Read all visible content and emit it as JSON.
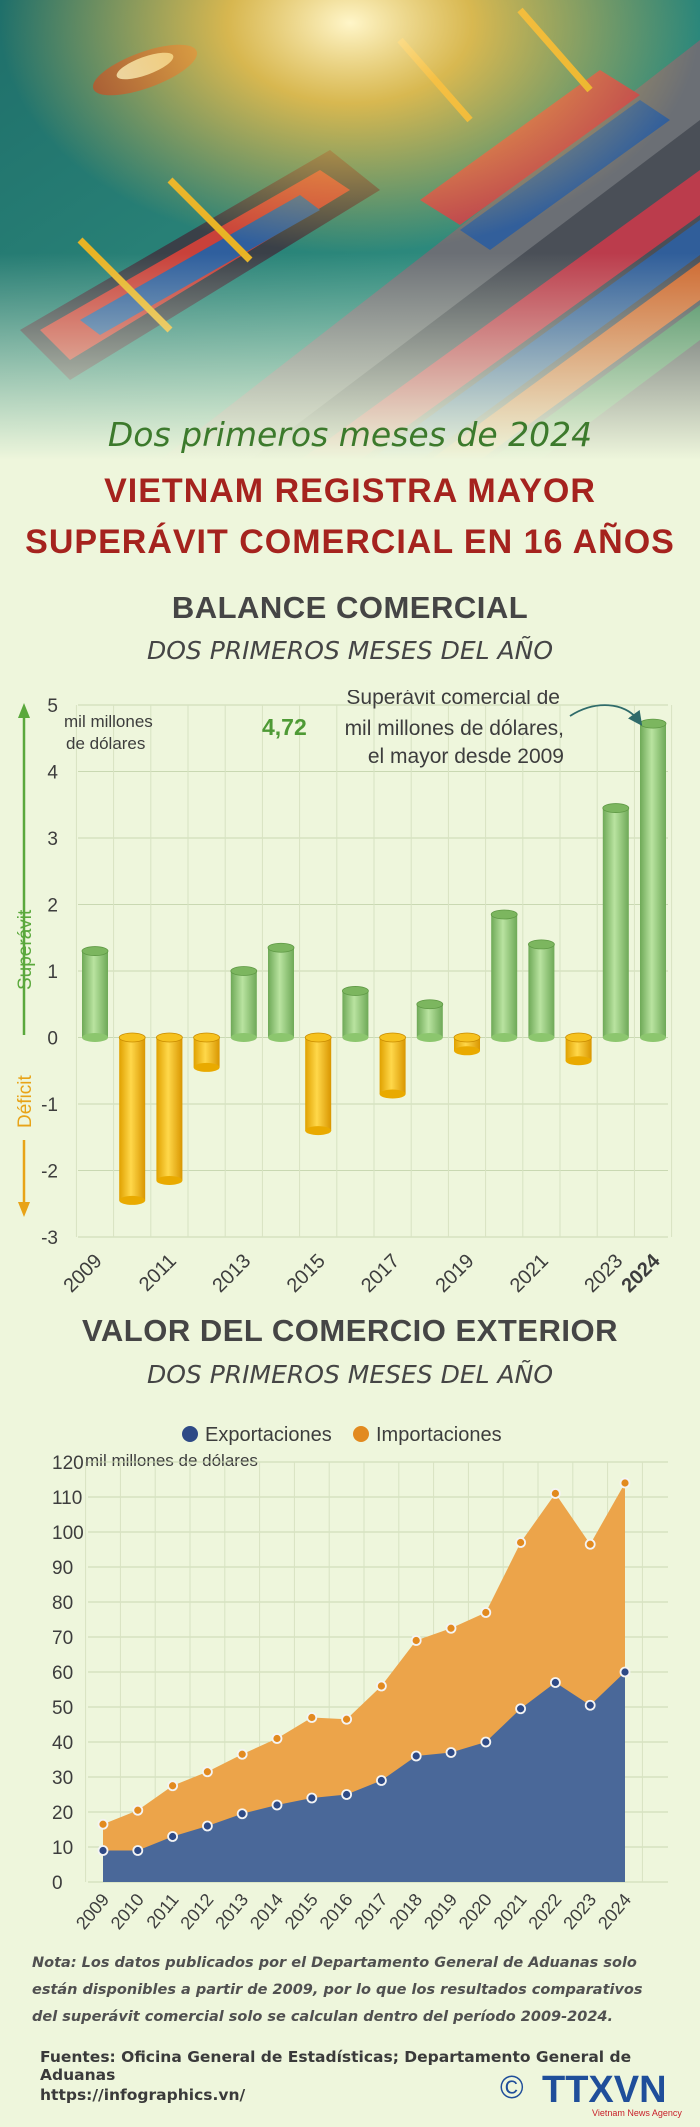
{
  "header": {
    "subtitle": "Dos primeros meses de 2024",
    "title_line1": "VIETNAM REGISTRA MAYOR",
    "title_line2": "SUPERÁVIT COMERCIAL EN 16 AÑOS"
  },
  "colors": {
    "surplus_green": "#8cc66e",
    "deficit_yellow": "#f2b705",
    "exports_blue": "#4a6899",
    "imports_orange": "#eca44a",
    "title_red": "#a5231e",
    "subtitle_green": "#3c7a2c"
  },
  "balance_section": {
    "title": "BALANCE COMERCIAL",
    "subtitle": "DOS PRIMEROS MESES DEL AÑO",
    "unit_line1": "mil millones",
    "unit_line2": "de dólares",
    "surplus_label": "Superávit",
    "deficit_label": "Déficit",
    "annotation_line1": "Superávit comercial de",
    "annotation_value": "4,72",
    "annotation_line2": "mil millones de dólares,",
    "annotation_line3": "el mayor desde 2009"
  },
  "trade_section": {
    "title": "VALOR DEL COMERCIO EXTERIOR",
    "subtitle": "DOS PRIMEROS MESES DEL AÑO",
    "legend_exports": "Exportaciones",
    "legend_imports": "Importaciones",
    "unit": "mil millones de dólares"
  },
  "footer": {
    "note": "Nota: Los datos publicados por el Departamento General de Aduanas solo están disponibles a partir de 2009, por lo que los resultados comparativos del superávit comercial solo se calculan dentro del período 2009-2024.",
    "sources": "Fuentes: Oficina General de Estadísticas; Departamento General de Aduanas",
    "url": "https://infographics.vn/",
    "logo_text": "TTXVN",
    "logo_sub": "Vietnam News Agency",
    "copyright": "©"
  },
  "chart_data": [
    {
      "type": "bar",
      "title": "BALANCE COMERCIAL",
      "ylabel": "mil millones de dólares",
      "categories": [
        "2009",
        "2010",
        "2011",
        "2012",
        "2013",
        "2014",
        "2015",
        "2016",
        "2017",
        "2018",
        "2019",
        "2020",
        "2021",
        "2022",
        "2023",
        "2024"
      ],
      "tick_labels_x": [
        "2009",
        "2011",
        "2013",
        "2015",
        "2017",
        "2019",
        "2021",
        "2023",
        "2024"
      ],
      "values": [
        1.3,
        -2.45,
        -2.15,
        -0.45,
        1.0,
        1.35,
        -1.4,
        0.7,
        -0.85,
        0.5,
        -0.2,
        1.85,
        1.4,
        -0.35,
        3.45,
        4.72
      ],
      "ylim": [
        -3,
        5
      ],
      "yticks": [
        -3,
        -2,
        -1,
        0,
        1,
        2,
        3,
        4,
        5
      ],
      "grid": true
    },
    {
      "type": "area",
      "title": "VALOR DEL COMERCIO EXTERIOR",
      "ylabel": "mil millones de dólares",
      "x": [
        "2009",
        "2010",
        "2011",
        "2012",
        "2013",
        "2014",
        "2015",
        "2016",
        "2017",
        "2018",
        "2019",
        "2020",
        "2021",
        "2022",
        "2023",
        "2024"
      ],
      "series": [
        {
          "name": "Exportaciones",
          "values": [
            9,
            9,
            13,
            16,
            19.5,
            22,
            24,
            25,
            29,
            36,
            37,
            40,
            49.5,
            57,
            50.5,
            60
          ]
        },
        {
          "name": "Importaciones",
          "values": [
            16.5,
            20.5,
            27.5,
            31.5,
            36.5,
            41,
            47,
            46.5,
            56,
            69,
            72.5,
            77,
            97,
            111,
            96.5,
            114
          ]
        }
      ],
      "ylim": [
        0,
        120
      ],
      "yticks": [
        0,
        10,
        20,
        30,
        40,
        50,
        60,
        70,
        80,
        90,
        100,
        110,
        120
      ],
      "legend": "top-center",
      "grid": true
    }
  ]
}
